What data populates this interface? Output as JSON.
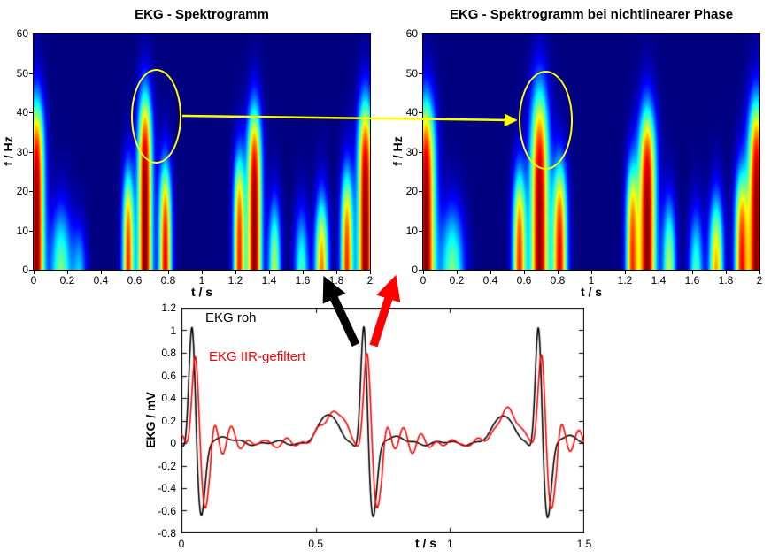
{
  "colors": {
    "background": "#ffffff",
    "spectrogram_background": "#000080",
    "annotation_yellow": "#ffff00",
    "arrow_black": "#000000",
    "arrow_red": "#ff0000"
  },
  "chart_data": [
    {
      "id": "spectrogram_left",
      "type": "heatmap",
      "title": "EKG - Spektrogramm",
      "xlabel": "t / s",
      "ylabel": "f / Hz",
      "xlim": [
        0,
        2
      ],
      "ylim": [
        0,
        60
      ],
      "xticks": [
        0,
        0.2,
        0.4,
        0.6,
        0.8,
        1,
        1.2,
        1.4,
        1.6,
        1.8,
        2
      ],
      "yticks": [
        0,
        10,
        20,
        30,
        40,
        50,
        60
      ],
      "colormap": "jet",
      "bursts": [
        {
          "t": 0.015,
          "amp": 1.0,
          "sigma_t": 0.032,
          "f_edge": 40,
          "f_soft": 5
        },
        {
          "t": 0.16,
          "amp": 0.55,
          "sigma_t": 0.045,
          "f_edge": 12,
          "f_soft": 5
        },
        {
          "t": 0.27,
          "amp": 0.35,
          "sigma_t": 0.03,
          "f_edge": 8,
          "f_soft": 4
        },
        {
          "t": 0.56,
          "amp": 0.85,
          "sigma_t": 0.024,
          "f_edge": 22,
          "f_soft": 5
        },
        {
          "t": 0.66,
          "amp": 1.0,
          "sigma_t": 0.03,
          "f_edge": 42,
          "f_soft": 5
        },
        {
          "t": 0.78,
          "amp": 0.9,
          "sigma_t": 0.026,
          "f_edge": 24,
          "f_soft": 5
        },
        {
          "t": 1.22,
          "amp": 0.85,
          "sigma_t": 0.024,
          "f_edge": 26,
          "f_soft": 5
        },
        {
          "t": 1.31,
          "amp": 1.0,
          "sigma_t": 0.03,
          "f_edge": 38,
          "f_soft": 5
        },
        {
          "t": 1.43,
          "amp": 0.6,
          "sigma_t": 0.026,
          "f_edge": 14,
          "f_soft": 5
        },
        {
          "t": 1.59,
          "amp": 0.5,
          "sigma_t": 0.03,
          "f_edge": 11,
          "f_soft": 5
        },
        {
          "t": 1.71,
          "amp": 0.8,
          "sigma_t": 0.028,
          "f_edge": 15,
          "f_soft": 5
        },
        {
          "t": 1.86,
          "amp": 0.85,
          "sigma_t": 0.026,
          "f_edge": 22,
          "f_soft": 5
        },
        {
          "t": 1.97,
          "amp": 1.0,
          "sigma_t": 0.032,
          "f_edge": 40,
          "f_soft": 5
        }
      ],
      "annotation_ellipse": {
        "t_center": 0.73,
        "f_center": 39,
        "t_radius": 0.15,
        "f_radius": 12
      }
    },
    {
      "id": "spectrogram_right",
      "type": "heatmap",
      "title": "EKG - Spektrogramm bei nichtlinearer Phase",
      "xlabel": "t / s",
      "ylabel": "f / Hz",
      "xlim": [
        0,
        2
      ],
      "ylim": [
        0,
        60
      ],
      "xticks": [
        0,
        0.2,
        0.4,
        0.6,
        0.8,
        1,
        1.2,
        1.4,
        1.6,
        1.8,
        2
      ],
      "yticks": [
        0,
        10,
        20,
        30,
        40,
        50,
        60
      ],
      "colormap": "jet",
      "bursts": [
        {
          "t": 0.015,
          "amp": 1.0,
          "sigma_t": 0.038,
          "f_edge": 40,
          "f_soft": 5
        },
        {
          "t": 0.17,
          "amp": 0.55,
          "sigma_t": 0.05,
          "f_edge": 12,
          "f_soft": 5
        },
        {
          "t": 0.57,
          "amp": 0.85,
          "sigma_t": 0.028,
          "f_edge": 22,
          "f_soft": 5
        },
        {
          "t": 0.69,
          "amp": 1.0,
          "sigma_t": 0.038,
          "f_edge": 42,
          "f_soft": 6
        },
        {
          "t": 0.81,
          "amp": 0.9,
          "sigma_t": 0.03,
          "f_edge": 24,
          "f_soft": 5
        },
        {
          "t": 1.24,
          "amp": 0.8,
          "sigma_t": 0.026,
          "f_edge": 24,
          "f_soft": 5
        },
        {
          "t": 1.33,
          "amp": 1.0,
          "sigma_t": 0.036,
          "f_edge": 38,
          "f_soft": 5
        },
        {
          "t": 1.46,
          "amp": 0.6,
          "sigma_t": 0.028,
          "f_edge": 14,
          "f_soft": 5
        },
        {
          "t": 1.62,
          "amp": 0.5,
          "sigma_t": 0.03,
          "f_edge": 11,
          "f_soft": 5
        },
        {
          "t": 1.74,
          "amp": 0.75,
          "sigma_t": 0.03,
          "f_edge": 15,
          "f_soft": 5
        },
        {
          "t": 1.89,
          "amp": 0.85,
          "sigma_t": 0.028,
          "f_edge": 22,
          "f_soft": 5
        },
        {
          "t": 1.98,
          "amp": 1.0,
          "sigma_t": 0.035,
          "f_edge": 40,
          "f_soft": 5
        }
      ],
      "annotation_ellipse": {
        "t_center": 0.73,
        "f_center": 38,
        "t_radius": 0.16,
        "f_radius": 12.5
      }
    },
    {
      "id": "ekg",
      "type": "line",
      "xlabel": "t / s",
      "ylabel": "EKG / mV",
      "xlim": [
        0,
        1.5
      ],
      "ylim": [
        -0.8,
        1.2
      ],
      "xticks": [
        0,
        0.5,
        1,
        1.5
      ],
      "yticks": [
        1.2,
        1,
        0.8,
        0.6,
        0.4,
        0.2,
        0,
        -0.2,
        -0.4,
        -0.6,
        -0.8
      ],
      "beats": [
        0.04,
        0.68,
        1.33
      ],
      "series": [
        {
          "name": "EKG roh",
          "color": "#000000",
          "params": {
            "r_amp": 1.08,
            "r_width": 0.0115,
            "s_amp": -0.68,
            "s_delay": 0.033,
            "s_width": 0.015,
            "p_amp": 0.26,
            "p_lead": 0.13,
            "p_width": 0.035
          }
        },
        {
          "name": "EKG IIR-gefiltert",
          "color": "#ff0000",
          "params": {
            "delay_s": 0.012,
            "r_amp": 0.84,
            "r_width": 0.013,
            "s_amp": -0.62,
            "s_delay": 0.035,
            "s_width": 0.016,
            "p_amp": 0.28,
            "p_lead": 0.125,
            "p_width": 0.042,
            "ring_amp": 0.17,
            "ring_period": 0.065,
            "ring_decay": 0.12
          }
        }
      ]
    }
  ],
  "annotations": {
    "yellow_arrow": {
      "from": [
        206,
        131
      ],
      "to": [
        584,
        136
      ],
      "color": "#ffff00",
      "width": 2.5,
      "head": 6
    },
    "black_arrow": {
      "from": [
        402,
        390
      ],
      "to": [
        366,
        313
      ],
      "color": "#000000",
      "width": 9.5,
      "head": 3
    },
    "red_arrow": {
      "from": [
        422,
        391
      ],
      "to": [
        447,
        312
      ],
      "color": "#ff0000",
      "width": 9.5,
      "head": 3
    }
  }
}
